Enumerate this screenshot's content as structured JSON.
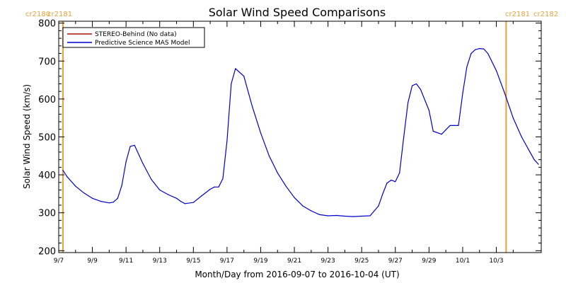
{
  "chart_data": {
    "type": "line",
    "title": "Solar Wind Speed Comparisons",
    "xlabel": "Month/Day from 2016-09-07 to 2016-10-04 (UT)",
    "ylabel": "Solar Wind Speed (km/s)",
    "xlim": [
      "2016-09-07",
      "2016-10-04"
    ],
    "ylim": [
      195,
      805
    ],
    "yticks": [
      200,
      300,
      400,
      500,
      600,
      700,
      800
    ],
    "xticks": [
      {
        "date": "2016-09-07",
        "label": "9/7"
      },
      {
        "date": "2016-09-09",
        "label": "9/9"
      },
      {
        "date": "2016-09-11",
        "label": "9/11"
      },
      {
        "date": "2016-09-13",
        "label": "9/13"
      },
      {
        "date": "2016-09-15",
        "label": "9/15"
      },
      {
        "date": "2016-09-17",
        "label": "9/17"
      },
      {
        "date": "2016-09-19",
        "label": "9/19"
      },
      {
        "date": "2016-09-21",
        "label": "9/21"
      },
      {
        "date": "2016-09-23",
        "label": "9/23"
      },
      {
        "date": "2016-09-25",
        "label": "9/25"
      },
      {
        "date": "2016-09-27",
        "label": "9/27"
      },
      {
        "date": "2016-09-29",
        "label": "9/29"
      },
      {
        "date": "2016-10-01",
        "label": "10/1"
      },
      {
        "date": "2016-10-03",
        "label": "10/3"
      }
    ],
    "grid": false,
    "legend_position": "top-left",
    "carrington_markers": [
      {
        "date": "2016-09-07 06:00",
        "color": "#e8a23a",
        "labels": [
          "cr2180",
          "cr2181"
        ],
        "side": "left"
      },
      {
        "date": "2016-10-03 14:00",
        "color": "#e8a23a",
        "labels": [
          "cr2181",
          "cr2182"
        ],
        "side": "right"
      }
    ],
    "series": [
      {
        "name": "STEREO-Behind (No data)",
        "color": "#b01010",
        "x": [],
        "y": []
      },
      {
        "name": "Predictive Science MAS Model",
        "color": "#0000cc",
        "x": [
          "2016-09-07 06:00",
          "2016-09-07 12:00",
          "2016-09-08 00:00",
          "2016-09-08 12:00",
          "2016-09-09 00:00",
          "2016-09-09 12:00",
          "2016-09-10 00:00",
          "2016-09-10 06:00",
          "2016-09-10 12:00",
          "2016-09-10 18:00",
          "2016-09-11 00:00",
          "2016-09-11 06:00",
          "2016-09-11 12:00",
          "2016-09-12 00:00",
          "2016-09-12 12:00",
          "2016-09-13 00:00",
          "2016-09-13 12:00",
          "2016-09-14 00:00",
          "2016-09-14 06:00",
          "2016-09-14 12:00",
          "2016-09-15 00:00",
          "2016-09-15 12:00",
          "2016-09-16 00:00",
          "2016-09-16 06:00",
          "2016-09-16 12:00",
          "2016-09-16 18:00",
          "2016-09-17 00:00",
          "2016-09-17 06:00",
          "2016-09-17 12:00",
          "2016-09-18 00:00",
          "2016-09-18 12:00",
          "2016-09-19 00:00",
          "2016-09-19 12:00",
          "2016-09-20 00:00",
          "2016-09-20 12:00",
          "2016-09-21 00:00",
          "2016-09-21 12:00",
          "2016-09-22 00:00",
          "2016-09-22 12:00",
          "2016-09-23 00:00",
          "2016-09-23 12:00",
          "2016-09-24 00:00",
          "2016-09-24 12:00",
          "2016-09-25 00:00",
          "2016-09-25 12:00",
          "2016-09-26 00:00",
          "2016-09-26 06:00",
          "2016-09-26 12:00",
          "2016-09-26 18:00",
          "2016-09-27 00:00",
          "2016-09-27 06:00",
          "2016-09-27 12:00",
          "2016-09-27 18:00",
          "2016-09-28 00:00",
          "2016-09-28 06:00",
          "2016-09-28 12:00",
          "2016-09-29 00:00",
          "2016-09-29 06:00",
          "2016-09-29 18:00",
          "2016-09-30 06:00",
          "2016-09-30 12:00",
          "2016-09-30 18:00",
          "2016-10-01 00:00",
          "2016-10-01 06:00",
          "2016-10-01 12:00",
          "2016-10-01 18:00",
          "2016-10-02 00:00",
          "2016-10-02 06:00",
          "2016-10-02 12:00",
          "2016-10-03 00:00",
          "2016-10-03 12:00",
          "2016-10-04 00:00",
          "2016-10-04 12:00",
          "2016-10-05 00:00",
          "2016-10-05 06:00",
          "2016-10-05 12:00"
        ],
        "y": [
          412,
          395,
          370,
          352,
          338,
          330,
          326,
          328,
          338,
          372,
          435,
          475,
          478,
          430,
          388,
          360,
          348,
          338,
          330,
          324,
          327,
          345,
          362,
          368,
          368,
          390,
          490,
          640,
          680,
          660,
          580,
          510,
          450,
          405,
          370,
          340,
          318,
          305,
          295,
          292,
          293,
          291,
          290,
          291,
          292,
          318,
          350,
          378,
          386,
          382,
          405,
          500,
          590,
          635,
          640,
          625,
          570,
          515,
          507,
          530,
          530,
          530,
          615,
          685,
          720,
          730,
          733,
          732,
          720,
          675,
          615,
          550,
          500,
          460,
          440,
          428
        ]
      }
    ]
  }
}
